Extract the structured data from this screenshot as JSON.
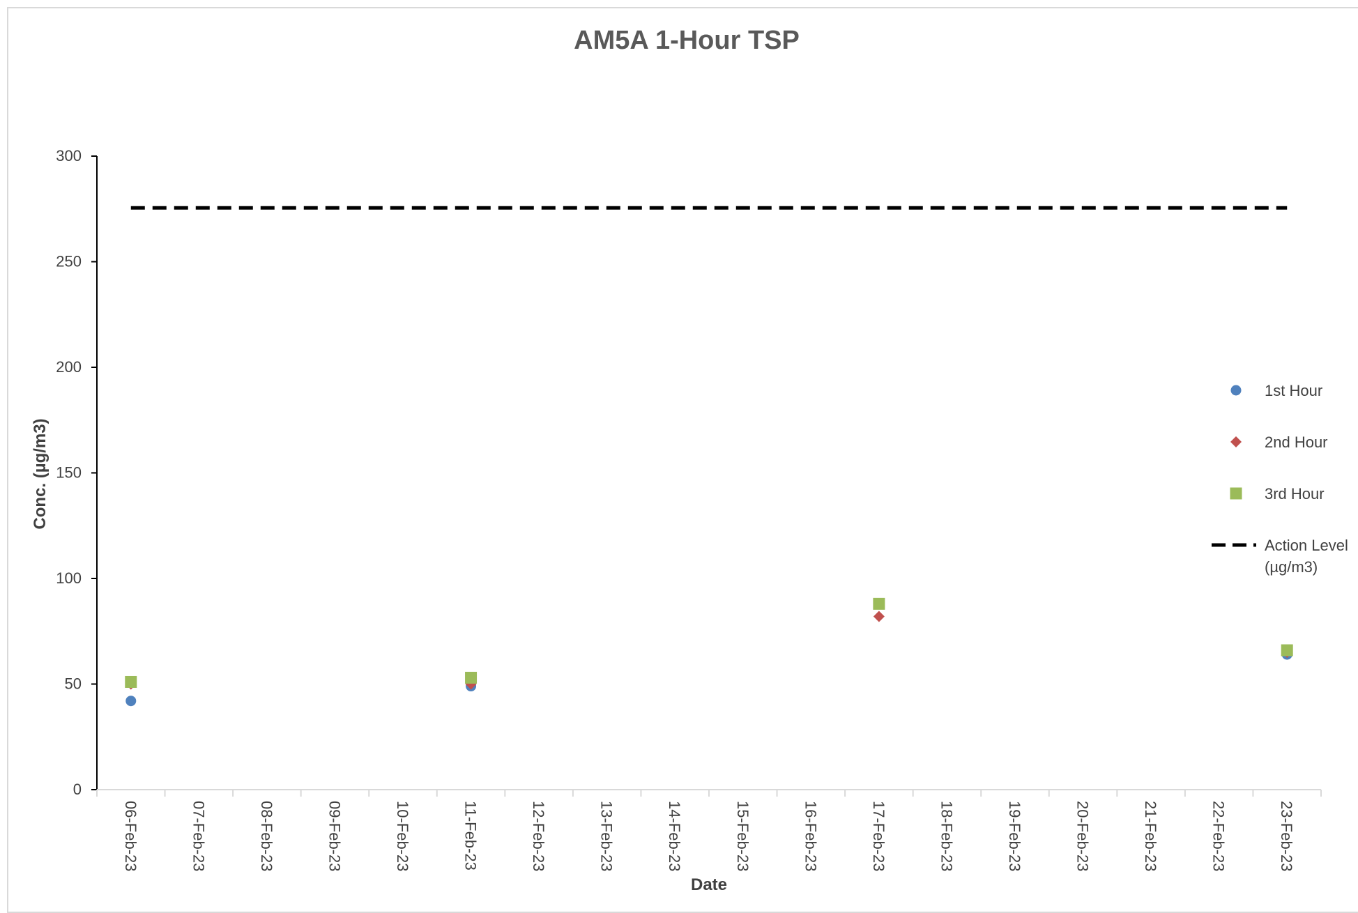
{
  "chart_data": {
    "type": "scatter",
    "title": "AM5A 1-Hour TSP",
    "xlabel": "Date",
    "ylabel": "Conc. (µg/m3)",
    "ylim": [
      0,
      300
    ],
    "yticks": [
      0,
      50,
      100,
      150,
      200,
      250,
      300
    ],
    "categories": [
      "06-Feb-23",
      "07-Feb-23",
      "08-Feb-23",
      "09-Feb-23",
      "10-Feb-23",
      "11-Feb-23",
      "12-Feb-23",
      "13-Feb-23",
      "14-Feb-23",
      "15-Feb-23",
      "16-Feb-23",
      "17-Feb-23",
      "18-Feb-23",
      "19-Feb-23",
      "20-Feb-23",
      "21-Feb-23",
      "22-Feb-23",
      "23-Feb-23"
    ],
    "grid": false,
    "legend_position": "right",
    "series": [
      {
        "name": "1st Hour",
        "marker": "circle",
        "color": "#4f81bd",
        "points": [
          {
            "x": "06-Feb-23",
            "y": 42
          },
          {
            "x": "11-Feb-23",
            "y": 49
          },
          {
            "x": "17-Feb-23",
            "y": 88
          },
          {
            "x": "23-Feb-23",
            "y": 64
          }
        ]
      },
      {
        "name": "2nd Hour",
        "marker": "diamond",
        "color": "#c0504d",
        "points": [
          {
            "x": "06-Feb-23",
            "y": 50
          },
          {
            "x": "11-Feb-23",
            "y": 50
          },
          {
            "x": "17-Feb-23",
            "y": 82
          },
          {
            "x": "23-Feb-23",
            "y": 65
          }
        ]
      },
      {
        "name": "3rd Hour",
        "marker": "square",
        "color": "#9bbb59",
        "points": [
          {
            "x": "06-Feb-23",
            "y": 51
          },
          {
            "x": "11-Feb-23",
            "y": 53
          },
          {
            "x": "17-Feb-23",
            "y": 88
          },
          {
            "x": "23-Feb-23",
            "y": 66
          }
        ]
      }
    ],
    "reference_line": {
      "name": "Action Level (µg/m3)",
      "legend_lines": [
        "Action Level",
        "(µg/m3)"
      ],
      "y": 275.5,
      "style": "dashed",
      "color": "#000000"
    }
  }
}
